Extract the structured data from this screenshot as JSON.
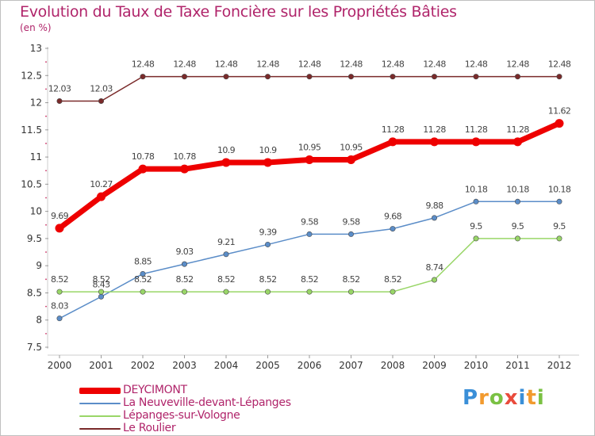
{
  "title": "Evolution du Taux de Taxe Foncière sur les Propriétés Bâties",
  "unit": "(en %)",
  "logo": {
    "text": "Proxiti",
    "letters": [
      {
        "ch": "P",
        "color": "#3a8fd8"
      },
      {
        "ch": "r",
        "color": "#f29a2e"
      },
      {
        "ch": "o",
        "color": "#7ac143"
      },
      {
        "ch": "x",
        "color": "#e94b3c"
      },
      {
        "ch": "i",
        "color": "#3a8fd8"
      },
      {
        "ch": "t",
        "color": "#f29a2e"
      },
      {
        "ch": "i",
        "color": "#7ac143"
      }
    ]
  },
  "chart_data": {
    "type": "line",
    "x": [
      "2000",
      "2001",
      "2002",
      "2003",
      "2004",
      "2005",
      "2006",
      "2007",
      "2008",
      "2009",
      "2010",
      "2011",
      "2012"
    ],
    "ylim": [
      7.5,
      13
    ],
    "yticks": [
      "7.5",
      "8",
      "8.5",
      "9",
      "9.5",
      "10",
      "10.5",
      "11",
      "11.5",
      "12",
      "12.5",
      "13"
    ],
    "grid": false,
    "legend_position": "bottom-left",
    "series": [
      {
        "name": "DEYCIMONT",
        "color": "#ee0000",
        "values": [
          9.69,
          10.27,
          10.78,
          10.78,
          10.9,
          10.9,
          10.95,
          10.95,
          11.28,
          11.28,
          11.28,
          11.28,
          11.62
        ],
        "labels": [
          "9.69",
          "10.27",
          "10.78",
          "10.78",
          "10.9",
          "10.9",
          "10.95",
          "10.95",
          "11.28",
          "11.28",
          "11.28",
          "11.28",
          "11.62"
        ]
      },
      {
        "name": "La Neuveville-devant-Lépanges",
        "color": "#5b8dc8",
        "values": [
          8.03,
          8.43,
          8.85,
          9.03,
          9.21,
          9.39,
          9.58,
          9.58,
          9.68,
          9.88,
          10.18,
          10.18,
          10.18
        ],
        "labels": [
          "8.03",
          "8.43",
          "8.85",
          "9.03",
          "9.21",
          "9.39",
          "9.58",
          "9.58",
          "9.68",
          "9.88",
          "10.18",
          "10.18",
          "10.18"
        ]
      },
      {
        "name": "Lépanges-sur-Vologne",
        "color": "#99d668",
        "values": [
          8.52,
          8.52,
          8.52,
          8.52,
          8.52,
          8.52,
          8.52,
          8.52,
          8.52,
          8.74,
          9.5,
          9.5,
          9.5
        ],
        "labels": [
          "8.52",
          "8.52",
          "8.52",
          "8.52",
          "8.52",
          "8.52",
          "8.52",
          "8.52",
          "8.52",
          "8.74",
          "9.5",
          "9.5",
          "9.5"
        ]
      },
      {
        "name": "Le Roulier",
        "color": "#7a2a2a",
        "values": [
          12.03,
          12.03,
          12.48,
          12.48,
          12.48,
          12.48,
          12.48,
          12.48,
          12.48,
          12.48,
          12.48,
          12.48,
          12.48
        ],
        "labels": [
          "12.03",
          "12.03",
          "12.48",
          "12.48",
          "12.48",
          "12.48",
          "12.48",
          "12.48",
          "12.48",
          "12.48",
          "12.48",
          "12.48",
          "12.48"
        ]
      }
    ]
  }
}
